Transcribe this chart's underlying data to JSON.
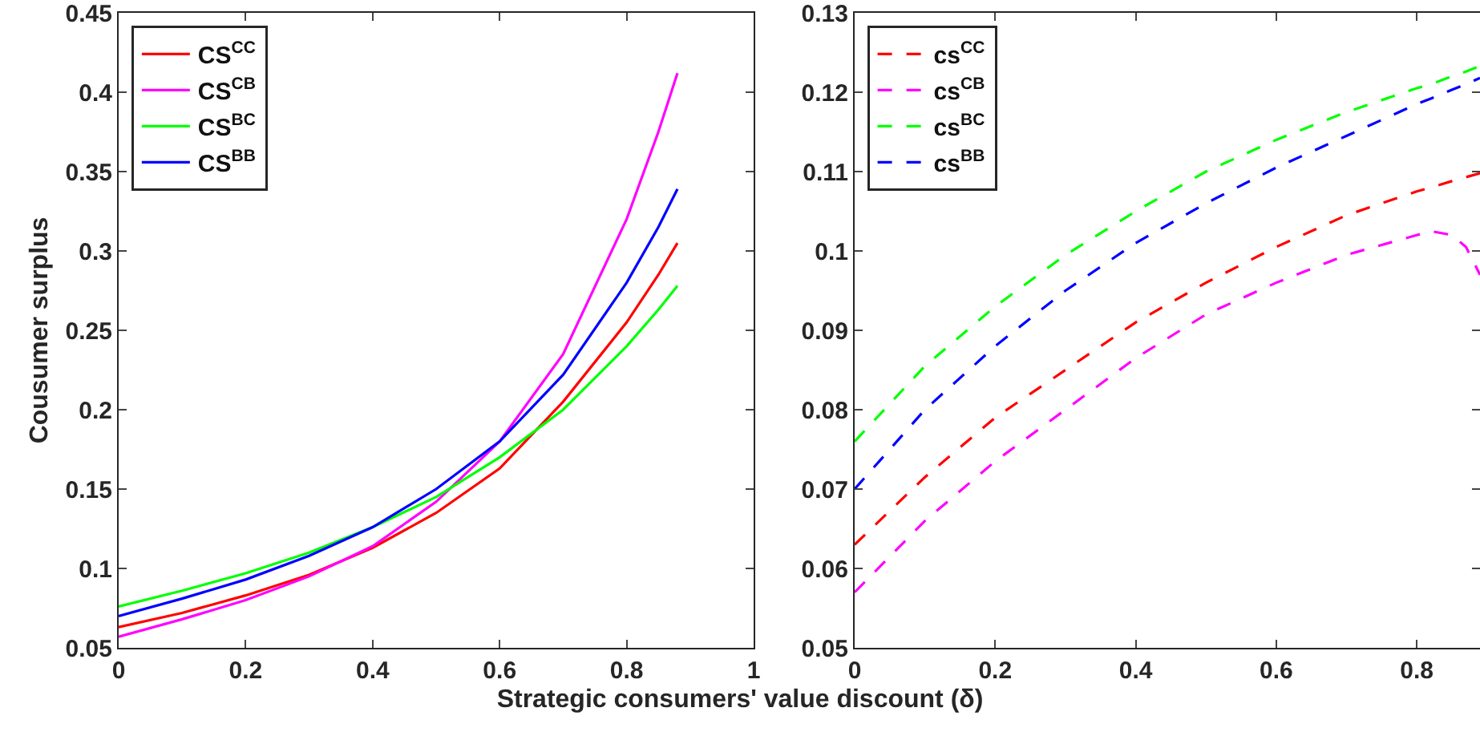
{
  "chart_data": [
    {
      "type": "line",
      "xlabel": "Strategic consumers' value discount (δ)",
      "ylabel": "Cousumer surplus",
      "x": [
        0,
        0.1,
        0.2,
        0.3,
        0.4,
        0.5,
        0.6,
        0.7,
        0.8,
        0.85,
        0.88
      ],
      "series": [
        {
          "name": "CS$^{CC}$",
          "color": "#ff0000",
          "values": [
            0.063,
            0.072,
            0.083,
            0.096,
            0.113,
            0.135,
            0.163,
            0.205,
            0.255,
            0.285,
            0.305
          ]
        },
        {
          "name": "CS$^{CB}$",
          "color": "#ff00ff",
          "values": [
            0.057,
            0.068,
            0.08,
            0.095,
            0.114,
            0.142,
            0.18,
            0.235,
            0.32,
            0.375,
            0.412
          ]
        },
        {
          "name": "CS$^{BC}$",
          "color": "#00ff00",
          "values": [
            0.076,
            0.086,
            0.097,
            0.11,
            0.126,
            0.145,
            0.17,
            0.2,
            0.24,
            0.263,
            0.278
          ]
        },
        {
          "name": "CS$^{BB}$",
          "color": "#0000ff",
          "values": [
            0.07,
            0.081,
            0.093,
            0.108,
            0.126,
            0.15,
            0.18,
            0.222,
            0.28,
            0.315,
            0.339
          ]
        }
      ],
      "xlim": [
        0,
        1
      ],
      "xticks": [
        0,
        0.2,
        0.4,
        0.6,
        0.8,
        1
      ],
      "ylim": [
        0.05,
        0.45
      ],
      "yticks": [
        0.05,
        0.1,
        0.15,
        0.2,
        0.25,
        0.3,
        0.35,
        0.4,
        0.45
      ],
      "grid": false,
      "legend": "top left",
      "marker": "none",
      "line_style": "solid"
    },
    {
      "type": "line",
      "x": [
        0,
        0.1,
        0.2,
        0.3,
        0.4,
        0.5,
        0.6,
        0.7,
        0.8,
        0.82,
        0.85,
        0.87,
        0.89
      ],
      "series": [
        {
          "name": "cs$^{CC}$",
          "color": "#ff0000",
          "values": [
            0.063,
            0.0715,
            0.079,
            0.085,
            0.091,
            0.096,
            0.1005,
            0.1045,
            0.1075,
            0.108,
            0.1088,
            0.1093,
            0.1098
          ]
        },
        {
          "name": "cs$^{CB}$",
          "color": "#ff00ff",
          "values": [
            0.057,
            0.066,
            0.0735,
            0.08,
            0.0865,
            0.092,
            0.096,
            0.0995,
            0.102,
            0.1025,
            0.102,
            0.1005,
            0.097
          ]
        },
        {
          "name": "cs$^{BC}$",
          "color": "#00ff00",
          "values": [
            0.076,
            0.0855,
            0.093,
            0.0995,
            0.105,
            0.11,
            0.114,
            0.1175,
            0.1205,
            0.121,
            0.122,
            0.1226,
            0.1233
          ]
        },
        {
          "name": "cs$^{BB}$",
          "color": "#0000ff",
          "values": [
            0.07,
            0.08,
            0.088,
            0.095,
            0.101,
            0.106,
            0.1105,
            0.1145,
            0.1185,
            0.1192,
            0.1203,
            0.121,
            0.1218
          ]
        }
      ],
      "xlim": [
        0,
        0.89
      ],
      "xticks": [
        0,
        0.2,
        0.4,
        0.6,
        0.8
      ],
      "ylim": [
        0.05,
        0.13
      ],
      "yticks": [
        0.05,
        0.06,
        0.07,
        0.08,
        0.09,
        0.1,
        0.11,
        0.12,
        0.13
      ],
      "grid": false,
      "legend": "top left",
      "marker": "none",
      "line_style": "dashed"
    }
  ]
}
